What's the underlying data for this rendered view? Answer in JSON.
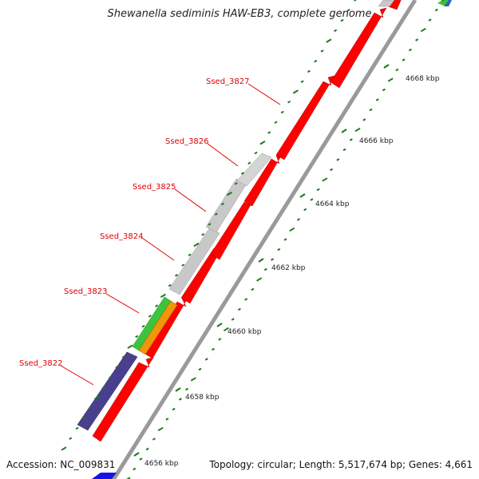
{
  "title": "Shewanella sediminis HAW-EB3, complete genome",
  "footer": {
    "accession": "Accession: NC_009831",
    "summary": "Topology: circular; Length: 5,517,674 bp; Genes: 4,661"
  },
  "colors": {
    "forward": "#ff0000",
    "grey": "#c8c8c8",
    "purple": "#4a3f8f",
    "green": "#3cc43c",
    "orange": "#f0960a",
    "blue": "#1414e6",
    "label": "#e00000",
    "tick": "#1a7a1a",
    "backbone": "#9a9a9a"
  },
  "ticks": [
    {
      "kbp": 4656,
      "label": "4656 kbp"
    },
    {
      "kbp": 4658,
      "label": "4658 kbp"
    },
    {
      "kbp": 4660,
      "label": "4660 kbp"
    },
    {
      "kbp": 4662,
      "label": "4662 kbp"
    },
    {
      "kbp": 4664,
      "label": "4664 kbp"
    },
    {
      "kbp": 4666,
      "label": "4666 kbp"
    },
    {
      "kbp": 4668,
      "label": "4668 kbp"
    }
  ],
  "gene_labels": [
    "Ssed_3822",
    "Ssed_3823",
    "Ssed_3824",
    "Ssed_3825",
    "Ssed_3826",
    "Ssed_3827"
  ]
}
